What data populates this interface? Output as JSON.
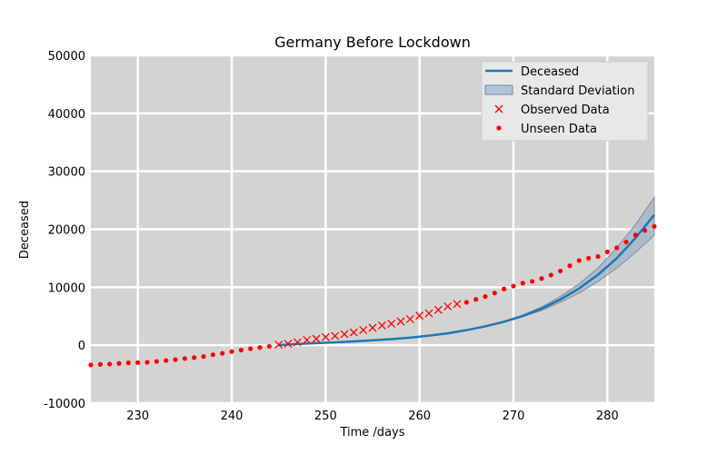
{
  "chart_data": {
    "type": "line",
    "title": "Germany Before Lockdown",
    "xlabel": "Time /days",
    "ylabel": "Deceased",
    "xlim": [
      225,
      285
    ],
    "ylim": [
      -10000,
      50000
    ],
    "x_ticks": [
      230,
      240,
      250,
      260,
      270,
      280
    ],
    "y_ticks": [
      -10000,
      0,
      10000,
      20000,
      30000,
      40000,
      50000
    ],
    "grid": true,
    "legend_position": "top-right",
    "colors": {
      "background": "#d3d3d3",
      "grid": "#ffffff",
      "deceased": "#1f77b4",
      "std_fill": "#b0c4de",
      "observed": "#ff0000",
      "unseen": "#ff0000"
    },
    "series": [
      {
        "name": "Deceased",
        "kind": "line",
        "x": [
          245,
          247,
          249,
          251,
          253,
          255,
          257,
          259,
          261,
          263,
          265,
          267,
          269,
          271,
          273,
          275,
          277,
          279,
          281,
          283,
          285
        ],
        "y": [
          0,
          200,
          350,
          500,
          650,
          850,
          1050,
          1300,
          1650,
          2050,
          2600,
          3250,
          4050,
          5050,
          6300,
          7900,
          9800,
          12150,
          15000,
          18500,
          22500
        ]
      },
      {
        "name": "Standard Deviation",
        "kind": "band",
        "x": [
          245,
          249,
          253,
          257,
          261,
          265,
          269,
          271,
          273,
          275,
          277,
          279,
          281,
          283,
          285
        ],
        "lower": [
          0,
          350,
          650,
          1050,
          1650,
          2600,
          3950,
          4900,
          6000,
          7400,
          9000,
          11000,
          13300,
          16000,
          19000
        ],
        "upper": [
          0,
          350,
          650,
          1050,
          1650,
          2600,
          4150,
          5200,
          6600,
          8400,
          10600,
          13300,
          16800,
          20800,
          25500
        ]
      },
      {
        "name": "Observed Data",
        "kind": "scatter-x",
        "x": [
          245,
          246,
          247,
          248,
          249,
          250,
          251,
          252,
          253,
          254,
          255,
          256,
          257,
          258,
          259,
          260,
          261,
          262,
          263,
          264
        ],
        "y": [
          100,
          250,
          500,
          900,
          1100,
          1400,
          1600,
          1900,
          2200,
          2600,
          3000,
          3400,
          3700,
          4100,
          4500,
          5100,
          5500,
          6100,
          6700,
          7100
        ]
      },
      {
        "name": "Unseen Data",
        "kind": "scatter-dot",
        "x": [
          225,
          226,
          227,
          228,
          229,
          230,
          231,
          232,
          233,
          234,
          235,
          236,
          237,
          238,
          239,
          240,
          241,
          242,
          243,
          244,
          265,
          266,
          267,
          268,
          269,
          270,
          271,
          272,
          273,
          274,
          275,
          276,
          277,
          278,
          279,
          280,
          281,
          282,
          283,
          284,
          285
        ],
        "y": [
          -3400,
          -3300,
          -3250,
          -3150,
          -3050,
          -3000,
          -2950,
          -2800,
          -2650,
          -2500,
          -2300,
          -2150,
          -1950,
          -1650,
          -1400,
          -1100,
          -850,
          -600,
          -400,
          -200,
          7400,
          7900,
          8400,
          9000,
          9700,
          10200,
          10700,
          11000,
          11500,
          12100,
          12800,
          13700,
          14600,
          15000,
          15300,
          16100,
          16800,
          17800,
          19000,
          19800,
          20500
        ]
      }
    ]
  }
}
